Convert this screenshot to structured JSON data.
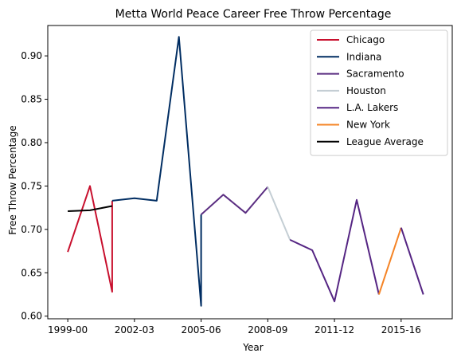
{
  "chart_data": {
    "type": "line",
    "title": "Metta World Peace Career Free Throw Percentage",
    "xlabel": "Year",
    "ylabel": "Free Throw Percentage",
    "x_tick_labels": [
      {
        "label": "1999-00",
        "x": 0
      },
      {
        "label": "2002-03",
        "x": 3
      },
      {
        "label": "2005-06",
        "x": 6
      },
      {
        "label": "2008-09",
        "x": 9
      },
      {
        "label": "2011-12",
        "x": 12
      },
      {
        "label": "2015-16",
        "x": 15
      }
    ],
    "y_ticks": [
      "0.60",
      "0.65",
      "0.70",
      "0.75",
      "0.80",
      "0.85",
      "0.90"
    ],
    "xlim": [
      -0.9,
      17.3
    ],
    "ylim": [
      0.597,
      0.935
    ],
    "grid": false,
    "legend_position": "top-right",
    "series": [
      {
        "name": "Chicago",
        "color": "#c8102e",
        "points": [
          [
            0,
            0.674
          ],
          [
            1,
            0.75
          ],
          [
            2,
            0.628
          ],
          [
            2,
            0.733
          ]
        ]
      },
      {
        "name": "Indiana",
        "color": "#002d62",
        "points": [
          [
            2,
            0.733
          ],
          [
            3,
            0.736
          ],
          [
            4,
            0.733
          ],
          [
            5,
            0.922
          ],
          [
            6,
            0.612
          ],
          [
            6,
            0.717
          ]
        ]
      },
      {
        "name": "Sacramento",
        "color": "#5a2d81",
        "points": [
          [
            6,
            0.717
          ],
          [
            7,
            0.74
          ],
          [
            8,
            0.719
          ],
          [
            9,
            0.749
          ]
        ]
      },
      {
        "name": "Houston",
        "color": "#c4ced4",
        "points": [
          [
            9,
            0.749
          ],
          [
            10,
            0.688
          ]
        ]
      },
      {
        "name": "L.A. Lakers",
        "color": "#552583",
        "points": [
          [
            10,
            0.688
          ],
          [
            11,
            0.676
          ],
          [
            12,
            0.617
          ],
          [
            13,
            0.734
          ],
          [
            14,
            0.625
          ]
        ]
      },
      {
        "name": "New York",
        "color": "#f58426",
        "points": [
          [
            14,
            0.625
          ],
          [
            15,
            0.702
          ]
        ]
      },
      {
        "name": "L.A. Lakers",
        "color": "#552583",
        "legend": false,
        "points": [
          [
            15,
            0.702
          ],
          [
            16,
            0.625
          ]
        ]
      },
      {
        "name": "League Average",
        "color": "#000000",
        "points": [
          [
            0,
            0.721
          ],
          [
            1,
            0.722
          ],
          [
            2,
            0.727
          ]
        ]
      }
    ]
  }
}
